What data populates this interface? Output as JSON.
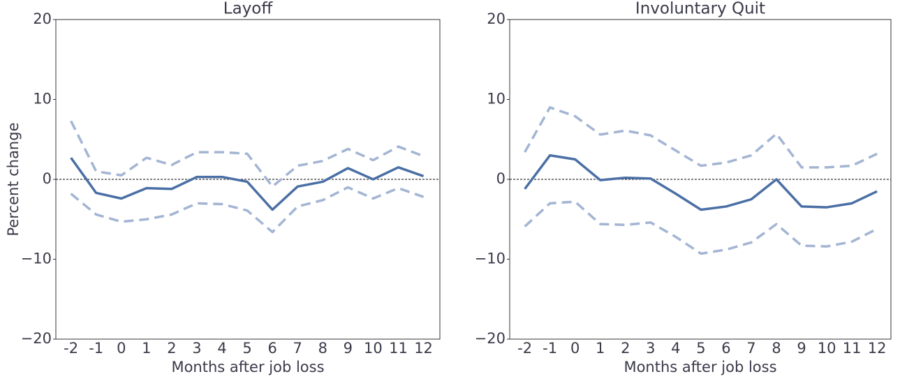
{
  "chart_data": [
    {
      "type": "line",
      "title": "Layoff",
      "xlabel": "Months after job loss",
      "ylabel": "Percent change",
      "x": [
        -2,
        -1,
        0,
        1,
        2,
        3,
        4,
        5,
        6,
        7,
        8,
        9,
        10,
        11,
        12
      ],
      "xlim": [
        -2.6,
        12.65
      ],
      "xticks": [
        -2,
        -1,
        0,
        1,
        2,
        3,
        4,
        5,
        6,
        7,
        8,
        9,
        10,
        11,
        12
      ],
      "ylim": [
        -20,
        20
      ],
      "yticks": [
        20,
        10,
        0,
        {
          "value": -10,
          "label": "−10"
        },
        {
          "value": -20,
          "label": "−20"
        }
      ],
      "zero_line": true,
      "series": [
        {
          "color": "#a3b5d3",
          "dashed": true,
          "values": [
            7.3,
            1.0,
            0.5,
            2.7,
            1.8,
            3.4,
            3.4,
            3.2,
            -0.9,
            1.7,
            2.3,
            3.8,
            2.4,
            4.1,
            2.9
          ]
        },
        {
          "color": "#a3b5d3",
          "dashed": true,
          "values": [
            -1.8,
            -4.4,
            -5.3,
            -5.0,
            -4.4,
            -3.0,
            -3.1,
            -3.9,
            -6.6,
            -3.4,
            -2.6,
            -1.0,
            -2.4,
            -1.1,
            -2.2
          ]
        },
        {
          "color": "#4a6fa5",
          "dashed": false,
          "values": [
            2.7,
            -1.7,
            -2.4,
            -1.1,
            -1.2,
            0.3,
            0.3,
            -0.3,
            -3.8,
            -0.9,
            -0.3,
            1.4,
            0.0,
            1.5,
            0.4
          ]
        }
      ]
    },
    {
      "type": "line",
      "title": "Involuntary Quit",
      "xlabel": "Months after job loss",
      "x": [
        -2,
        -1,
        0,
        1,
        2,
        3,
        4,
        5,
        6,
        7,
        8,
        9,
        10,
        11,
        12
      ],
      "xlim": [
        -2.6,
        12.55
      ],
      "xticks": [
        -2,
        -1,
        0,
        1,
        2,
        3,
        4,
        5,
        6,
        7,
        8,
        9,
        10,
        11,
        12
      ],
      "ylim": [
        -20,
        20
      ],
      "yticks": [
        20,
        10,
        0,
        {
          "value": -10,
          "label": "−10"
        },
        {
          "value": -20,
          "label": "−20"
        }
      ],
      "zero_line": true,
      "series": [
        {
          "color": "#a3b5d3",
          "dashed": true,
          "values": [
            3.4,
            9.0,
            7.9,
            5.6,
            6.1,
            5.5,
            3.6,
            1.7,
            2.1,
            3.0,
            5.7,
            1.5,
            1.5,
            1.7,
            3.2
          ]
        },
        {
          "color": "#a3b5d3",
          "dashed": true,
          "values": [
            -5.9,
            -3.0,
            -2.8,
            -5.6,
            -5.7,
            -5.4,
            -7.2,
            -9.3,
            -8.8,
            -7.9,
            -5.6,
            -8.3,
            -8.4,
            -7.8,
            -6.2
          ]
        },
        {
          "color": "#4a6fa5",
          "dashed": false,
          "values": [
            -1.2,
            3.0,
            2.5,
            -0.1,
            0.2,
            0.1,
            -1.8,
            -3.8,
            -3.4,
            -2.5,
            0.0,
            -3.4,
            -3.5,
            -3.0,
            -1.5
          ]
        }
      ]
    }
  ]
}
